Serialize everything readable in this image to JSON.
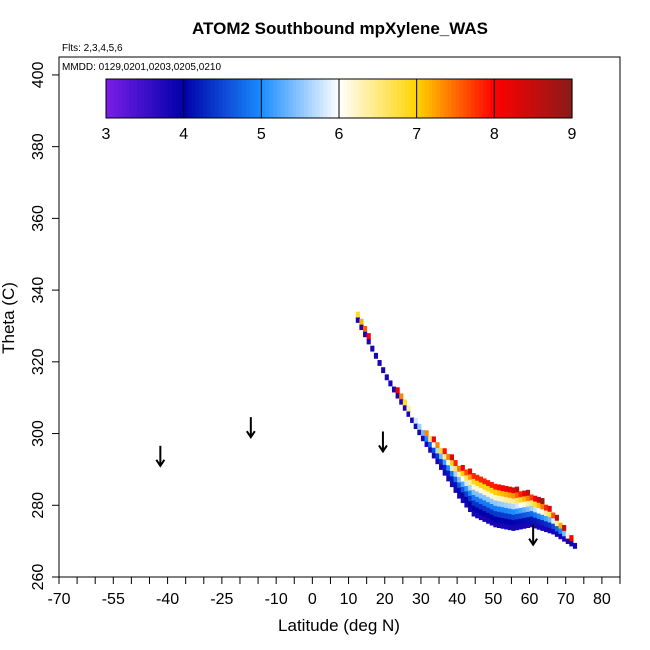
{
  "chart_data": {
    "type": "heatmap",
    "title": "ATOM2 Southbound mpXylene_WAS",
    "subtitle_lines": [
      "Flts: 2,3,4,5,6",
      "MMDD: 0129,0201,0203,0205,0210"
    ],
    "xlabel": "Latitude (deg N)",
    "ylabel": "Theta (C)",
    "xlim": [
      -70,
      85
    ],
    "ylim": [
      260,
      405
    ],
    "x_ticks": [
      -70,
      -55,
      -40,
      -25,
      -10,
      0,
      10,
      20,
      30,
      40,
      50,
      60,
      70,
      80
    ],
    "x_tick_labels": [
      "-70",
      "-55",
      "-40",
      "-25",
      "-10",
      "0",
      "10",
      "20",
      "30",
      "40",
      "50",
      "60",
      "70",
      "80"
    ],
    "x_minor_ticks": [
      -65,
      -60,
      -50,
      -45,
      -35,
      -30,
      -20,
      -15,
      -5,
      5,
      15,
      25,
      35,
      45,
      55,
      65,
      75,
      85
    ],
    "y_ticks": [
      260,
      280,
      300,
      320,
      340,
      360,
      380,
      400
    ],
    "y_tick_labels": [
      "260",
      "280",
      "300",
      "320",
      "340",
      "360",
      "380",
      "400"
    ],
    "colorbar": {
      "range": [
        3,
        9
      ],
      "ticks": [
        "3",
        "4",
        "5",
        "6",
        "7",
        "8",
        "9"
      ],
      "colors": [
        "#7a1ee8",
        "#0000aa",
        "#1a8cff",
        "#ffffff",
        "#ffd400",
        "#ff0000",
        "#8b1a1a"
      ]
    },
    "arrows": [
      {
        "lat": -42,
        "theta": 291
      },
      {
        "lat": -17,
        "theta": 299
      },
      {
        "lat": 19.5,
        "theta": 295
      },
      {
        "lat": 61,
        "theta": 269
      }
    ],
    "field": {
      "upper_edge": [
        [
          12,
          333
        ],
        [
          20,
          316
        ],
        [
          30,
          301
        ],
        [
          40,
          291
        ],
        [
          50,
          286
        ],
        [
          60,
          283
        ],
        [
          65,
          279
        ],
        [
          72,
          269
        ]
      ],
      "lower_edge": [
        [
          12,
          331
        ],
        [
          20,
          315
        ],
        [
          30,
          298
        ],
        [
          40,
          282
        ],
        [
          44,
          277
        ],
        [
          50,
          274
        ],
        [
          55,
          273
        ],
        [
          60,
          274
        ],
        [
          66,
          272
        ],
        [
          72,
          268
        ]
      ],
      "value_at_upper": 8.6,
      "value_at_lower": 3.8
    }
  }
}
